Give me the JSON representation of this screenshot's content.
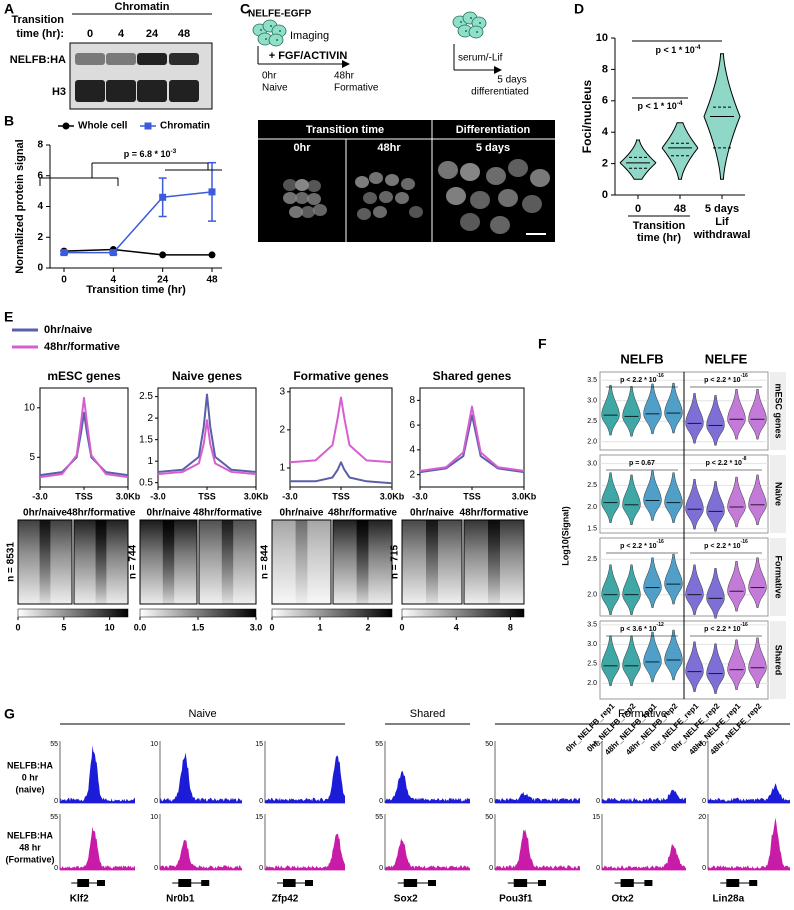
{
  "panel_labels": [
    "A",
    "B",
    "C",
    "D",
    "E",
    "F",
    "G"
  ],
  "panel_a": {
    "title_lines": [
      "Transition",
      "time (hr):"
    ],
    "header": "Chromatin",
    "lanes": [
      "0",
      "4",
      "24",
      "48"
    ],
    "blots": [
      "NELFB:HA",
      "H3"
    ]
  },
  "panel_c": {
    "construct": "NELFE-EGFP",
    "imaging": "Imaging",
    "start": [
      "0hr",
      "Naive"
    ],
    "step1": "+ FGF/ACTIVIN",
    "mid": [
      "48hr",
      "Formative"
    ],
    "step2": "serum/-Lif",
    "end": [
      "5 days",
      "differentiated"
    ],
    "headers": [
      "Transition time",
      "Differentiation"
    ],
    "columns": [
      "0hr",
      "48hr",
      "5 days"
    ]
  },
  "chart_data": [
    {
      "type": "line",
      "xlabel": "Transition time (hr)",
      "ylabel": "Normalized protein signal",
      "categories": [
        "0",
        "4",
        "24",
        "48"
      ],
      "ylim": [
        0,
        8
      ],
      "yticks": [
        0,
        2,
        4,
        6,
        8
      ],
      "series": [
        {
          "name": "Whole cell",
          "color": "#000000",
          "values": [
            1.1,
            1.2,
            0.85,
            0.85
          ]
        },
        {
          "name": "Chromatin",
          "color": "#3b5bdb",
          "values": [
            1.0,
            1.0,
            4.6,
            4.95
          ],
          "errors": [
            0.1,
            0.1,
            1.25,
            1.9
          ]
        }
      ],
      "annotation": {
        "text": "p = 6.8 * 10",
        "exp": "-3"
      }
    },
    {
      "type": "violin",
      "ylabel": "Foci/nucleus",
      "categories": [
        "0",
        "48",
        "5 days"
      ],
      "group_labels": [
        [
          "Transition",
          "time (hr)"
        ],
        [
          "Lif",
          "withdrawal"
        ]
      ],
      "ylim": [
        0,
        10
      ],
      "yticks": [
        0,
        2,
        4,
        6,
        8,
        10
      ],
      "color": "#8fd8c8",
      "min": [
        1,
        1,
        1
      ],
      "q1": [
        1.7,
        2.5,
        3
      ],
      "median": [
        2.05,
        3,
        5
      ],
      "q3": [
        2.4,
        3.3,
        5.6
      ],
      "max": [
        3.5,
        4.6,
        9
      ],
      "annotations": [
        {
          "text": "p < 1 * 10",
          "exp": "-4"
        },
        {
          "text": "p < 1 * 10",
          "exp": "-4"
        }
      ]
    },
    {
      "type": "profile",
      "title": "mESC genes",
      "x": [
        -3,
        -1.5,
        -0.5,
        -0.2,
        0,
        0.2,
        0.5,
        1.5,
        3
      ],
      "xlim": [
        -3,
        3
      ],
      "xticks": [
        {
          "value": -3,
          "label": "-3.0"
        },
        {
          "value": 0,
          "label": "TSS"
        },
        {
          "value": 3,
          "label": "3.0Kb"
        }
      ],
      "ylim": [
        2,
        12
      ],
      "yticks": [
        5,
        10
      ],
      "series": [
        {
          "name": "0hr/naive",
          "color": "#5b5fa8",
          "values": [
            3.2,
            3.5,
            5,
            7.5,
            9.5,
            7.5,
            5,
            3.5,
            3.2
          ]
        },
        {
          "name": "48hr/formative",
          "color": "#d65fd0",
          "values": [
            3.0,
            3.3,
            5.2,
            8.5,
            11,
            8.5,
            5.2,
            3.3,
            3.0
          ]
        }
      ],
      "heatmap": {
        "columns": [
          "0hr/naive",
          "48hr/formative"
        ],
        "n_label": "n = 8531",
        "clim": [
          0,
          12
        ],
        "cticks": [
          0,
          5,
          10
        ]
      }
    },
    {
      "type": "profile",
      "title": "Naive genes",
      "x": [
        -3,
        -1.5,
        -0.5,
        -0.2,
        0,
        0.2,
        0.5,
        1.5,
        3
      ],
      "xlim": [
        -3,
        3
      ],
      "xticks": [
        {
          "value": -3,
          "label": "-3.0"
        },
        {
          "value": 0,
          "label": "TSS"
        },
        {
          "value": 3,
          "label": "3.0Kb"
        }
      ],
      "ylim": [
        0.4,
        2.7
      ],
      "yticks": [
        0.5,
        1.0,
        1.5,
        2.0,
        2.5
      ],
      "series": [
        {
          "color": "#5b5fa8",
          "values": [
            0.75,
            0.8,
            1.1,
            1.8,
            2.55,
            1.8,
            1.1,
            0.8,
            0.75
          ]
        },
        {
          "color": "#d65fd0",
          "values": [
            0.7,
            0.75,
            0.95,
            1.4,
            1.95,
            1.4,
            0.95,
            0.75,
            0.7
          ]
        }
      ],
      "heatmap": {
        "columns": [
          "0hr/naive",
          "48hr/formative"
        ],
        "n_label": "n = 744",
        "clim": [
          0,
          3
        ],
        "cticks": [
          {
            "value": 0,
            "label": "0.0"
          },
          1.5,
          {
            "value": 3,
            "label": "3.0"
          }
        ]
      }
    },
    {
      "type": "profile",
      "title": "Formative genes",
      "x": [
        -3,
        -1.5,
        -0.5,
        -0.2,
        0,
        0.2,
        0.5,
        1.5,
        3
      ],
      "xlim": [
        -3,
        3
      ],
      "xticks": [
        {
          "value": -3,
          "label": "-3.0"
        },
        {
          "value": 0,
          "label": "TSS"
        },
        {
          "value": 3,
          "label": "3.0Kb"
        }
      ],
      "ylim": [
        0.5,
        3.1
      ],
      "yticks": [
        1,
        2,
        3
      ],
      "series": [
        {
          "color": "#5b5fa8",
          "values": [
            0.65,
            0.65,
            0.75,
            0.95,
            1.15,
            0.95,
            0.75,
            0.65,
            0.6
          ]
        },
        {
          "color": "#d65fd0",
          "values": [
            1.15,
            1.2,
            1.6,
            2.3,
            2.85,
            2.3,
            1.6,
            1.2,
            1.15
          ]
        }
      ],
      "heatmap": {
        "columns": [
          "0hr/naive",
          "48hr/formative"
        ],
        "n_label": "n = 844",
        "clim": [
          0,
          2.5
        ],
        "cticks": [
          0,
          1,
          2
        ]
      }
    },
    {
      "type": "profile",
      "title": "Shared genes",
      "x": [
        -3,
        -1.5,
        -0.5,
        -0.2,
        0,
        0.2,
        0.5,
        1.5,
        3
      ],
      "xlim": [
        -3,
        3
      ],
      "xticks": [
        {
          "value": -3,
          "label": "-3.0"
        },
        {
          "value": 0,
          "label": "TSS"
        },
        {
          "value": 3,
          "label": "3.0Kb"
        }
      ],
      "ylim": [
        1,
        9
      ],
      "yticks": [
        2,
        4,
        6,
        8
      ],
      "series": [
        {
          "color": "#5b5fa8",
          "values": [
            2.2,
            2.5,
            3.5,
            5.5,
            6.8,
            5.5,
            3.5,
            2.5,
            2.2
          ]
        },
        {
          "color": "#d65fd0",
          "values": [
            2.3,
            2.6,
            3.8,
            6,
            7.5,
            6,
            3.8,
            2.6,
            2.3
          ]
        }
      ],
      "heatmap": {
        "columns": [
          "0hr/naive",
          "48hr/formative"
        ],
        "n_label": "n = 715",
        "clim": [
          0,
          9
        ],
        "cticks": [
          0,
          4,
          8
        ]
      }
    },
    {
      "type": "violin_grid",
      "column_groups": [
        "NELFB",
        "NELFE"
      ],
      "ylabel": "Log10(Signal)",
      "categories": [
        "0hr_NELFB_rep1",
        "0hr_NELFB_rep2",
        "48hr_NELFB_rep1",
        "48hr_NELFB_rep2",
        "0hr_NELFE_rep1",
        "0hr_NELFE_rep2",
        "48hr_NELFE_rep1",
        "48hr_NELFE_rep2"
      ],
      "colors": [
        "#3fa7a6",
        "#3fa7a6",
        "#4f9fc8",
        "#4f9fc8",
        "#7d6fd6",
        "#7d6fd6",
        "#c37ad8",
        "#c37ad8"
      ],
      "rows": [
        {
          "name": "mESC genes",
          "ylim": [
            1.8,
            3.7
          ],
          "yticks": [
            {
              "value": 2,
              "label": "2.0"
            },
            2.5,
            {
              "value": 3,
              "label": "3.0"
            },
            3.5
          ],
          "medians": [
            2.65,
            2.62,
            2.68,
            2.7,
            2.45,
            2.4,
            2.55,
            2.55
          ],
          "pvalues": [
            {
              "text": "p < 2.2 * 10",
              "exp": "-16"
            },
            {
              "text": "p < 2.2 * 10",
              "exp": "-16"
            }
          ]
        },
        {
          "name": "Naive",
          "ylim": [
            1.4,
            3.2
          ],
          "yticks": [
            1.5,
            {
              "value": 2,
              "label": "2.0"
            },
            2.5,
            {
              "value": 3,
              "label": "3.0"
            }
          ],
          "medians": [
            2.1,
            2.05,
            2.15,
            2.1,
            1.95,
            1.9,
            2.0,
            2.05
          ],
          "pvalues": [
            {
              "text": "p = 0.67"
            },
            {
              "text": "p < 2.2 * 10",
              "exp": "-8"
            }
          ]
        },
        {
          "name": "Formative",
          "ylim": [
            1.7,
            2.8
          ],
          "yticks": [
            {
              "value": 2,
              "label": "2.0"
            },
            2.5
          ],
          "medians": [
            2.0,
            2.0,
            2.1,
            2.15,
            2.0,
            1.95,
            2.05,
            2.1
          ],
          "pvalues": [
            {
              "text": "p < 2.2 * 10",
              "exp": "-16"
            },
            {
              "text": "p < 2.2 * 10",
              "exp": "-16"
            }
          ]
        },
        {
          "name": "Shared",
          "ylim": [
            1.6,
            3.6
          ],
          "yticks": [
            {
              "value": 2,
              "label": "2.0"
            },
            2.5,
            {
              "value": 3,
              "label": "3.0"
            },
            3.5
          ],
          "medians": [
            2.45,
            2.45,
            2.55,
            2.6,
            2.3,
            2.25,
            2.35,
            2.4
          ],
          "pvalues": [
            {
              "text": "p < 3.6 * 10",
              "exp": "-12"
            },
            {
              "text": "p < 2.2 * 10",
              "exp": "-16"
            }
          ]
        }
      ]
    },
    {
      "type": "tracks",
      "groups": [
        {
          "label": "Naive",
          "genes": [
            "Klf2",
            "Nr0b1",
            "Zfp42"
          ]
        },
        {
          "label": "Shared",
          "genes": [
            "Sox2"
          ]
        },
        {
          "label": "Formative",
          "genes": [
            "Pou3f1",
            "Otx2",
            "Lin28a"
          ]
        }
      ],
      "rows": [
        {
          "lines": [
            "NELFB:HA",
            "0 hr",
            "(naive)"
          ],
          "color": "#1c1cd8"
        },
        {
          "lines": [
            "NELFB:HA",
            "48 hr",
            "(Formative)"
          ],
          "color": "#c81ca8"
        }
      ],
      "ylims": [
        [
          0,
          55
        ],
        [
          0,
          10
        ],
        [
          0,
          15
        ],
        [
          0,
          55
        ],
        [
          0,
          50
        ],
        [
          0,
          15
        ],
        [
          0,
          20
        ]
      ]
    }
  ]
}
